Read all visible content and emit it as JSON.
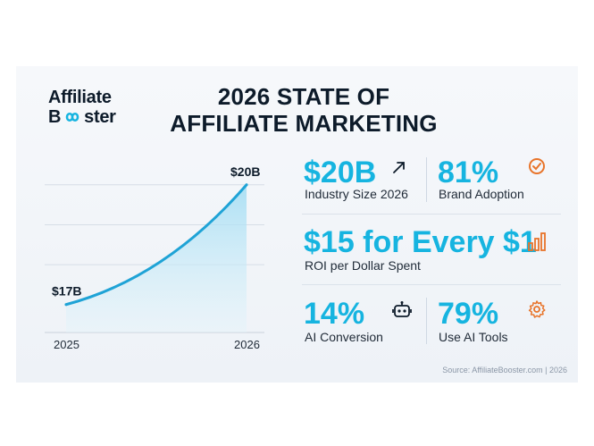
{
  "brand": {
    "line1": "Affiliate",
    "line2_pre": "B",
    "line2_post": "ster"
  },
  "title": {
    "line1": "2026 STATE OF",
    "line2": "AFFILIATE MARKETING"
  },
  "chart_data": {
    "type": "area",
    "x": [
      2025,
      2026
    ],
    "x_tick_labels": [
      "2025",
      "2026"
    ],
    "series": [
      {
        "values": [
          17,
          20
        ]
      }
    ],
    "point_labels": [
      "$17B",
      "$20B"
    ],
    "ylim": [
      16.3,
      20.6
    ],
    "grid": true,
    "color": "#1fa3d6"
  },
  "stats": [
    {
      "value": "$20B",
      "label": "Industry Size 2026",
      "icon": "arrow-up-right-icon"
    },
    {
      "value": "81%",
      "label": "Brand Adoption",
      "icon": "check-circle-icon"
    },
    {
      "value": "$15 for Every $1",
      "label": "ROI per Dollar Spent",
      "icon": "bar-chart-icon"
    },
    {
      "value": "14%",
      "label": "AI Conversion",
      "icon": "robot-icon"
    },
    {
      "value": "79%",
      "label": "Use AI Tools",
      "icon": "gear-icon"
    }
  ],
  "colors": {
    "accent": "#16b4e0",
    "dark": "#0d1b2a",
    "orange": "#e8742a"
  },
  "source": "Source: AffiliateBooster.com | 2026"
}
